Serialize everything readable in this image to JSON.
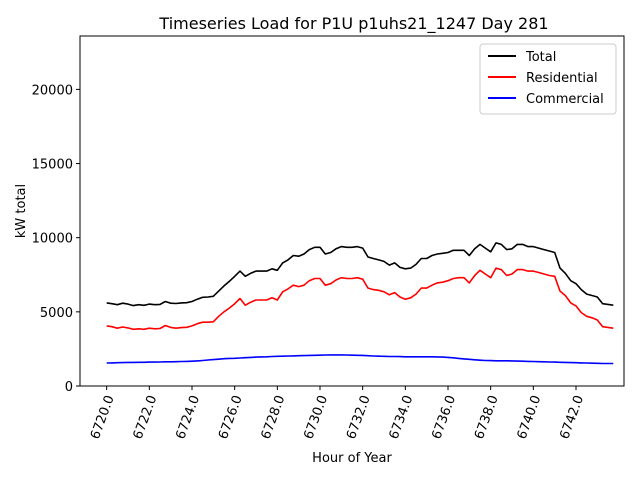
{
  "chart_data": {
    "type": "line",
    "title": "Timeseries Load for P1U p1uhs21_1247  Day 281",
    "xlabel": "Hour of Year",
    "ylabel": "kW total",
    "xlim": [
      6718.75,
      6744.25
    ],
    "ylim": [
      0,
      23600
    ],
    "xticks": [
      6720,
      6722,
      6724,
      6726,
      6728,
      6730,
      6732,
      6734,
      6736,
      6738,
      6740,
      6742
    ],
    "xtick_labels": [
      "6720.0",
      "6722.0",
      "6724.0",
      "6726.0",
      "6728.0",
      "6730.0",
      "6732.0",
      "6734.0",
      "6736.0",
      "6738.0",
      "6740.0",
      "6742.0"
    ],
    "yticks": [
      0,
      5000,
      10000,
      15000,
      20000
    ],
    "ytick_labels": [
      "0",
      "5000",
      "10000",
      "15000",
      "20000"
    ],
    "legend_position": "top-right",
    "x": [
      6720.0,
      6720.25,
      6720.5,
      6720.75,
      6721.0,
      6721.25,
      6721.5,
      6721.75,
      6722.0,
      6722.25,
      6722.5,
      6722.75,
      6723.0,
      6723.25,
      6723.5,
      6723.75,
      6724.0,
      6724.25,
      6724.5,
      6724.75,
      6725.0,
      6725.25,
      6725.5,
      6725.75,
      6726.0,
      6726.25,
      6726.5,
      6726.75,
      6727.0,
      6727.25,
      6727.5,
      6727.75,
      6728.0,
      6728.25,
      6728.5,
      6728.75,
      6729.0,
      6729.25,
      6729.5,
      6729.75,
      6730.0,
      6730.25,
      6730.5,
      6730.75,
      6731.0,
      6731.25,
      6731.5,
      6731.75,
      6732.0,
      6732.25,
      6732.5,
      6732.75,
      6733.0,
      6733.25,
      6733.5,
      6733.75,
      6734.0,
      6734.25,
      6734.5,
      6734.75,
      6735.0,
      6735.25,
      6735.5,
      6735.75,
      6736.0,
      6736.25,
      6736.5,
      6736.75,
      6737.0,
      6737.25,
      6737.5,
      6737.75,
      6738.0,
      6738.25,
      6738.5,
      6738.75,
      6739.0,
      6739.25,
      6739.5,
      6739.75,
      6740.0,
      6740.25,
      6740.5,
      6740.75,
      6741.0,
      6741.25,
      6741.5,
      6741.75,
      6742.0,
      6742.25,
      6742.5,
      6742.75,
      6743.0,
      6743.25,
      6743.5,
      6743.75
    ],
    "series": [
      {
        "name": "Total",
        "color": "#000000",
        "values": [
          5600,
          5550,
          5480,
          5580,
          5520,
          5420,
          5480,
          5440,
          5520,
          5480,
          5500,
          5700,
          5580,
          5560,
          5600,
          5620,
          5700,
          5850,
          5980,
          6000,
          6050,
          6400,
          6750,
          7050,
          7400,
          7750,
          7400,
          7600,
          7750,
          7750,
          7750,
          7900,
          7800,
          8300,
          8500,
          8800,
          8750,
          8900,
          9200,
          9350,
          9350,
          8900,
          9000,
          9250,
          9400,
          9350,
          9350,
          9400,
          9300,
          8700,
          8600,
          8500,
          8400,
          8150,
          8300,
          8000,
          7900,
          7950,
          8200,
          8600,
          8600,
          8800,
          8900,
          8950,
          9000,
          9150,
          9150,
          9150,
          8800,
          9250,
          9550,
          9300,
          9050,
          9650,
          9550,
          9200,
          9250,
          9550,
          9550,
          9400,
          9400,
          9300,
          9200,
          9100,
          9000,
          7950,
          7600,
          7100,
          6900,
          6500,
          6200,
          6100,
          6000,
          5550,
          5500,
          5450
        ]
      },
      {
        "name": "Residential",
        "color": "#ff0000",
        "values": [
          4050,
          4000,
          3900,
          3980,
          3920,
          3820,
          3860,
          3820,
          3900,
          3860,
          3880,
          4080,
          3950,
          3900,
          3940,
          3960,
          4050,
          4200,
          4300,
          4300,
          4330,
          4700,
          5000,
          5250,
          5550,
          5900,
          5450,
          5650,
          5800,
          5800,
          5800,
          5950,
          5800,
          6350,
          6550,
          6800,
          6700,
          6800,
          7100,
          7250,
          7250,
          6800,
          6900,
          7150,
          7300,
          7250,
          7250,
          7300,
          7200,
          6600,
          6500,
          6450,
          6350,
          6150,
          6300,
          6000,
          5850,
          5950,
          6200,
          6600,
          6600,
          6800,
          6950,
          7000,
          7100,
          7250,
          7300,
          7300,
          6950,
          7450,
          7800,
          7550,
          7300,
          7950,
          7850,
          7450,
          7550,
          7850,
          7850,
          7750,
          7750,
          7650,
          7550,
          7450,
          7400,
          6400,
          6100,
          5600,
          5400,
          4950,
          4700,
          4600,
          4450,
          4000,
          3950,
          3900
        ]
      },
      {
        "name": "Commercial",
        "color": "#0000ff",
        "values": [
          1550,
          1560,
          1570,
          1580,
          1590,
          1590,
          1600,
          1600,
          1610,
          1610,
          1620,
          1630,
          1630,
          1640,
          1650,
          1660,
          1670,
          1690,
          1720,
          1750,
          1780,
          1810,
          1840,
          1860,
          1870,
          1890,
          1910,
          1930,
          1950,
          1960,
          1970,
          1990,
          2000,
          2010,
          2020,
          2030,
          2040,
          2050,
          2060,
          2070,
          2080,
          2090,
          2100,
          2100,
          2100,
          2090,
          2080,
          2070,
          2060,
          2040,
          2020,
          2010,
          2000,
          1990,
          1990,
          1980,
          1970,
          1970,
          1970,
          1970,
          1970,
          1970,
          1960,
          1950,
          1930,
          1900,
          1860,
          1830,
          1800,
          1770,
          1740,
          1720,
          1710,
          1700,
          1700,
          1700,
          1690,
          1680,
          1670,
          1660,
          1650,
          1640,
          1630,
          1620,
          1610,
          1600,
          1590,
          1580,
          1570,
          1560,
          1550,
          1540,
          1530,
          1520,
          1520,
          1520
        ]
      }
    ]
  }
}
